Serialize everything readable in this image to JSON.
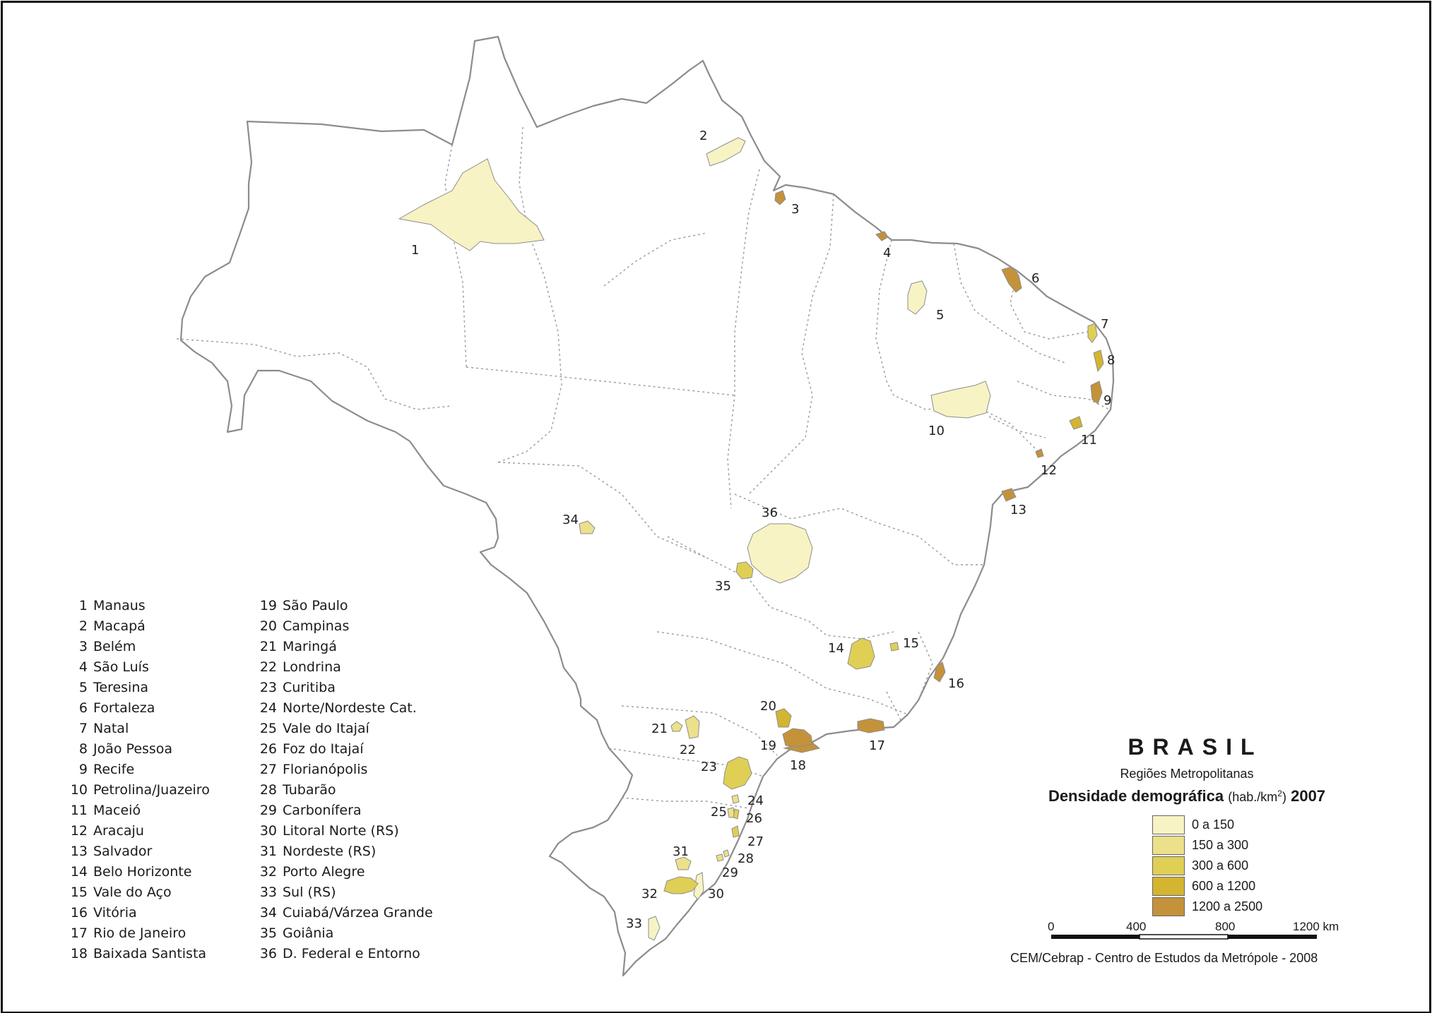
{
  "map": {
    "title": "BRASIL",
    "subtitle": "Regiões Metropolitanas",
    "legend_title": "Densidade demográfica",
    "legend_unit_prefix": "(hab./km",
    "legend_unit_exp": "2",
    "legend_unit_suffix": ")",
    "legend_year": "2007",
    "classes": [
      {
        "label": "0 a 150",
        "color": "#f7f3c4"
      },
      {
        "label": "150 a 300",
        "color": "#ece08a"
      },
      {
        "label": "300 a 600",
        "color": "#e0cf55"
      },
      {
        "label": "600 a 1200",
        "color": "#d4b530"
      },
      {
        "label": "1200 a 2500",
        "color": "#c4923a"
      }
    ],
    "scale_bar": {
      "ticks": [
        "0",
        "400",
        "800",
        "1200 km"
      ]
    },
    "credit": "CEM/Cebrap - Centro de Estudos da Metrópole - 2008"
  },
  "regions": [
    {
      "id": "1",
      "name": "Manaus",
      "class": 0
    },
    {
      "id": "2",
      "name": "Macapá",
      "class": 0
    },
    {
      "id": "3",
      "name": "Belém",
      "class": 4
    },
    {
      "id": "4",
      "name": "São Luís",
      "class": 4
    },
    {
      "id": "5",
      "name": "Teresina",
      "class": 0
    },
    {
      "id": "6",
      "name": "Fortaleza",
      "class": 4
    },
    {
      "id": "7",
      "name": "Natal",
      "class": 2
    },
    {
      "id": "8",
      "name": "João Pessoa",
      "class": 3
    },
    {
      "id": "9",
      "name": "Recife",
      "class": 4
    },
    {
      "id": "10",
      "name": "Petrolina/Juazeiro",
      "class": 0
    },
    {
      "id": "11",
      "name": "Maceió",
      "class": 3
    },
    {
      "id": "12",
      "name": "Aracaju",
      "class": 4
    },
    {
      "id": "13",
      "name": "Salvador",
      "class": 4
    },
    {
      "id": "14",
      "name": "Belo Horizonte",
      "class": 2
    },
    {
      "id": "15",
      "name": "Vale do Aço",
      "class": 2
    },
    {
      "id": "16",
      "name": "Vitória",
      "class": 4
    },
    {
      "id": "17",
      "name": "Rio de Janeiro",
      "class": 4
    },
    {
      "id": "18",
      "name": "Baixada Santista",
      "class": 4
    },
    {
      "id": "19",
      "name": "São Paulo",
      "class": 4
    },
    {
      "id": "20",
      "name": "Campinas",
      "class": 3
    },
    {
      "id": "21",
      "name": "Maringá",
      "class": 1
    },
    {
      "id": "22",
      "name": "Londrina",
      "class": 1
    },
    {
      "id": "23",
      "name": "Curitiba",
      "class": 2
    },
    {
      "id": "24",
      "name": "Norte/Nordeste Cat.",
      "class": 1
    },
    {
      "id": "25",
      "name": "Vale do Itajaí",
      "class": 1
    },
    {
      "id": "26",
      "name": "Foz do Itajaí",
      "class": 2
    },
    {
      "id": "27",
      "name": "Florianópolis",
      "class": 2
    },
    {
      "id": "28",
      "name": "Tubarão",
      "class": 1
    },
    {
      "id": "29",
      "name": "Carbonífera",
      "class": 1
    },
    {
      "id": "30",
      "name": "Litoral Norte (RS)",
      "class": 0
    },
    {
      "id": "31",
      "name": "Nordeste (RS)",
      "class": 1
    },
    {
      "id": "32",
      "name": "Porto Alegre",
      "class": 2
    },
    {
      "id": "33",
      "name": "Sul (RS)",
      "class": 0
    },
    {
      "id": "34",
      "name": "Cuiabá/Várzea Grande",
      "class": 1
    },
    {
      "id": "35",
      "name": "Goiânia",
      "class": 2
    },
    {
      "id": "36",
      "name": "D. Federal e Entorno",
      "class": 0
    }
  ]
}
